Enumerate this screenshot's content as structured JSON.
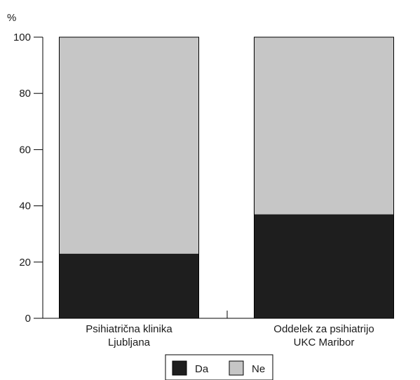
{
  "chart_data": {
    "type": "bar",
    "stacked": true,
    "categories": [
      [
        "Psihiatrična klinika",
        "Ljubljana"
      ],
      [
        "Oddelek za psihiatrijo",
        "UKC Maribor"
      ]
    ],
    "series": [
      {
        "name": "Da",
        "values": [
          23,
          37
        ],
        "color": "#1e1e1e"
      },
      {
        "name": "Ne",
        "values": [
          77,
          63
        ],
        "color": "#c6c6c6"
      }
    ],
    "ylabel": "%",
    "ylim": [
      0,
      100
    ],
    "yticks": [
      0,
      20,
      40,
      60,
      80,
      100
    ],
    "grid": false,
    "legend": "bottom-center"
  }
}
